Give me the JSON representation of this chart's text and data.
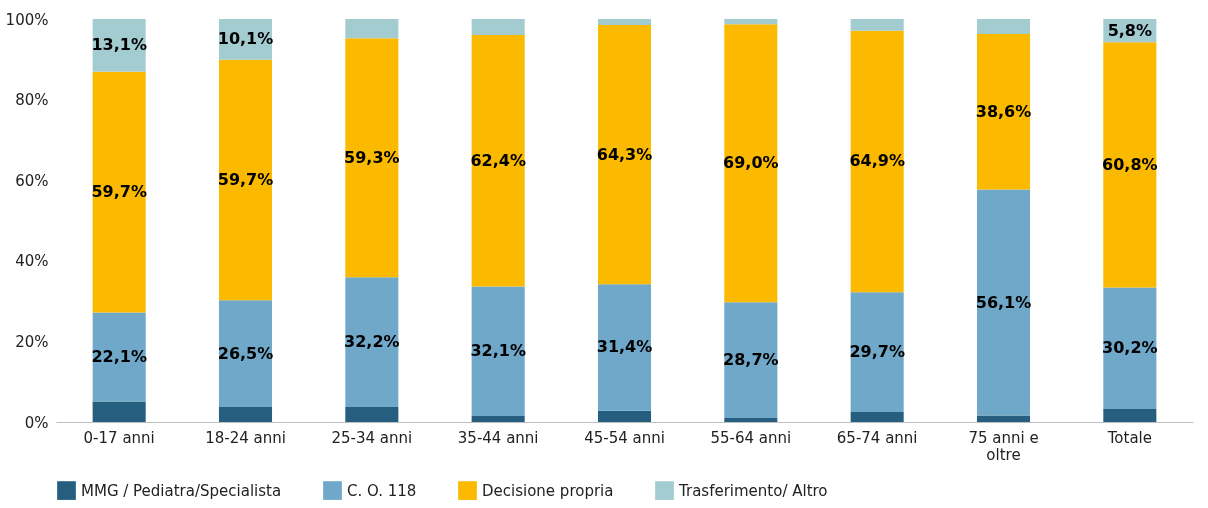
{
  "chart_data": {
    "type": "bar",
    "stacked": true,
    "categories": [
      "0-17 anni",
      "18-24 anni",
      "25-34 anni",
      "35-44 anni",
      "45-54 anni",
      "55-64 anni",
      "65-74 anni",
      "75 anni e oltre",
      "Totale"
    ],
    "series": [
      {
        "name": "MMG / Pediatra/Specialista",
        "color": "#255e7e",
        "values": [
          5.1,
          3.7,
          3.7,
          1.5,
          2.8,
          1.0,
          2.5,
          1.6,
          3.2
        ],
        "value_labels": [
          null,
          null,
          null,
          null,
          null,
          null,
          null,
          null,
          null
        ]
      },
      {
        "name": "C. O. 118",
        "color": "#6fa8c8",
        "values": [
          22.1,
          26.5,
          32.2,
          32.1,
          31.4,
          28.7,
          29.7,
          56.1,
          30.2
        ],
        "value_labels": [
          "22,1%",
          "26,5%",
          "32,2%",
          "32,1%",
          "31,4%",
          "28,7%",
          "29,7%",
          "56,1%",
          "30,2%"
        ]
      },
      {
        "name": "Decisione propria",
        "color": "#fbb900",
        "values": [
          59.7,
          59.7,
          59.3,
          62.4,
          64.3,
          69.0,
          64.9,
          38.6,
          60.8
        ],
        "value_labels": [
          "59,7%",
          "59,7%",
          "59,3%",
          "62,4%",
          "64,3%",
          "69,0%",
          "64,9%",
          "38,6%",
          "60,8%"
        ]
      },
      {
        "name": "Trasferimento/ Altro",
        "color": "#a3ccd1",
        "values": [
          13.1,
          10.1,
          4.8,
          4.0,
          1.5,
          1.3,
          2.9,
          3.7,
          5.8
        ],
        "value_labels": [
          "13,1%",
          "10,1%",
          null,
          null,
          null,
          null,
          null,
          null,
          "5,8%"
        ]
      }
    ],
    "ylim": [
      0,
      100
    ],
    "yticks": [
      {
        "value": 0,
        "label": "0%"
      },
      {
        "value": 20,
        "label": "20%"
      },
      {
        "value": 40,
        "label": "40%"
      },
      {
        "value": 60,
        "label": "60%"
      },
      {
        "value": 80,
        "label": "80%"
      },
      {
        "value": 100,
        "label": "100%"
      }
    ],
    "grid": false,
    "legend": "bottom"
  }
}
